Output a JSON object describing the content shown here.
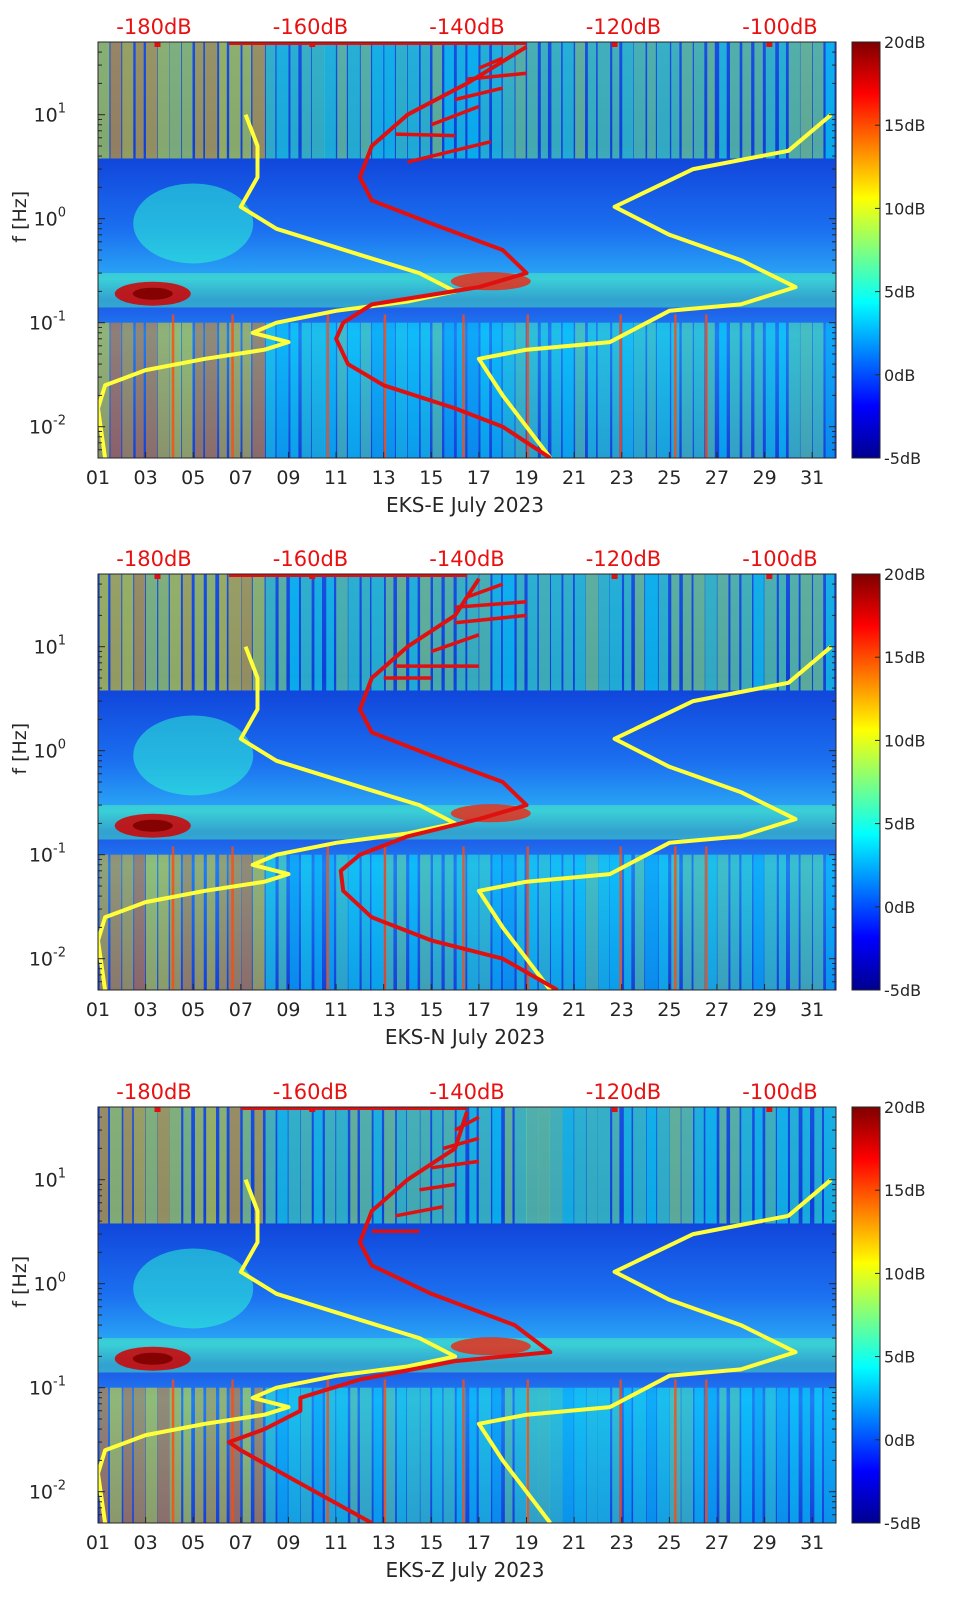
{
  "chart_data": [
    {
      "type": "heatmap",
      "xlabel": "EKS-E July 2023",
      "ylabel": "f [Hz]",
      "x_ticks": [
        "01",
        "03",
        "05",
        "07",
        "09",
        "11",
        "13",
        "15",
        "17",
        "19",
        "21",
        "23",
        "25",
        "27",
        "29",
        "31"
      ],
      "xlim": [
        1,
        32
      ],
      "ylim": [
        0.005,
        50
      ],
      "y_scale": "log",
      "y_ticks": [
        {
          "value": 0.01,
          "base": "10",
          "exp": "-2"
        },
        {
          "value": 0.1,
          "base": "10",
          "exp": "-1"
        },
        {
          "value": 1,
          "base": "10",
          "exp": "0"
        },
        {
          "value": 10,
          "base": "10",
          "exp": "1"
        }
      ],
      "top_scale_labels": [
        "-180dB",
        "-160dB",
        "-140dB",
        "-120dB",
        "-100dB"
      ],
      "colorbar": {
        "colormap": "jet",
        "range": [
          -5,
          20
        ],
        "labels": [
          "20dB",
          "15dB",
          "10dB",
          "5dB",
          "0dB",
          "-5dB"
        ]
      },
      "yellow_curve": [
        [
          1.3,
          0.005
        ],
        [
          1.0,
          0.015
        ],
        [
          1.3,
          0.025
        ],
        [
          3.0,
          0.035
        ],
        [
          5.5,
          0.045
        ],
        [
          8.0,
          0.055
        ],
        [
          9.0,
          0.065
        ],
        [
          7.5,
          0.08
        ],
        [
          8.5,
          0.1
        ],
        [
          11,
          0.13
        ],
        [
          14,
          0.16
        ],
        [
          16,
          0.2
        ],
        [
          14.5,
          0.3
        ],
        [
          12,
          0.45
        ],
        [
          8.5,
          0.8
        ],
        [
          7.0,
          1.3
        ],
        [
          7.7,
          2.5
        ],
        [
          7.7,
          5
        ],
        [
          7.2,
          10
        ]
      ],
      "yellow_curve_right": [
        [
          20,
          0.005
        ],
        [
          19,
          0.01
        ],
        [
          18,
          0.02
        ],
        [
          17,
          0.045
        ],
        [
          19,
          0.055
        ],
        [
          22.5,
          0.065
        ],
        [
          25,
          0.13
        ],
        [
          28,
          0.15
        ],
        [
          30.3,
          0.22
        ],
        [
          28,
          0.4
        ],
        [
          25,
          0.7
        ],
        [
          22.7,
          1.3
        ],
        [
          26,
          3.0
        ],
        [
          30,
          4.5
        ],
        [
          31.8,
          10
        ]
      ],
      "red_curve": [
        [
          20,
          0.005
        ],
        [
          18,
          0.01
        ],
        [
          16,
          0.015
        ],
        [
          13,
          0.025
        ],
        [
          11.5,
          0.04
        ],
        [
          11,
          0.07
        ],
        [
          11.3,
          0.1
        ],
        [
          12.5,
          0.15
        ],
        [
          17,
          0.22
        ],
        [
          19,
          0.3
        ],
        [
          18,
          0.5
        ],
        [
          15,
          0.9
        ],
        [
          12.5,
          1.5
        ],
        [
          12,
          2.5
        ],
        [
          12.5,
          5
        ],
        [
          14,
          10
        ],
        [
          16.5,
          20
        ],
        [
          19,
          45
        ]
      ],
      "red_fingers": [
        [
          [
            14,
            3.5
          ],
          [
            17.5,
            5.5
          ]
        ],
        [
          [
            13.5,
            6.5
          ],
          [
            16,
            6.3
          ]
        ],
        [
          [
            15,
            8
          ],
          [
            17,
            12
          ]
        ],
        [
          [
            16,
            14
          ],
          [
            18,
            18
          ]
        ],
        [
          [
            16.5,
            22
          ],
          [
            19,
            25
          ]
        ],
        [
          [
            17,
            28
          ],
          [
            18,
            35
          ]
        ]
      ],
      "red_top_line": [
        6.5,
        19.0
      ],
      "red_top_dots": [
        3.5,
        10,
        22.7,
        29.2
      ]
    },
    {
      "type": "heatmap",
      "xlabel": "EKS-N July 2023",
      "ylabel": "f [Hz]",
      "x_ticks": [
        "01",
        "03",
        "05",
        "07",
        "09",
        "11",
        "13",
        "15",
        "17",
        "19",
        "21",
        "23",
        "25",
        "27",
        "29",
        "31"
      ],
      "xlim": [
        1,
        32
      ],
      "ylim": [
        0.005,
        50
      ],
      "y_scale": "log",
      "y_ticks": [
        {
          "value": 0.01,
          "base": "10",
          "exp": "-2"
        },
        {
          "value": 0.1,
          "base": "10",
          "exp": "-1"
        },
        {
          "value": 1,
          "base": "10",
          "exp": "0"
        },
        {
          "value": 10,
          "base": "10",
          "exp": "1"
        }
      ],
      "top_scale_labels": [
        "-180dB",
        "-160dB",
        "-140dB",
        "-120dB",
        "-100dB"
      ],
      "colorbar": {
        "colormap": "jet",
        "range": [
          -5,
          20
        ],
        "labels": [
          "20dB",
          "15dB",
          "10dB",
          "5dB",
          "0dB",
          "-5dB"
        ]
      },
      "yellow_curve": [
        [
          1.3,
          0.005
        ],
        [
          1.0,
          0.015
        ],
        [
          1.3,
          0.025
        ],
        [
          3.0,
          0.035
        ],
        [
          5.5,
          0.045
        ],
        [
          8.0,
          0.055
        ],
        [
          9.0,
          0.065
        ],
        [
          7.5,
          0.08
        ],
        [
          8.5,
          0.1
        ],
        [
          11,
          0.13
        ],
        [
          14,
          0.16
        ],
        [
          16,
          0.2
        ],
        [
          14.5,
          0.3
        ],
        [
          12,
          0.45
        ],
        [
          8.5,
          0.8
        ],
        [
          7.0,
          1.3
        ],
        [
          7.7,
          2.5
        ],
        [
          7.7,
          5
        ],
        [
          7.2,
          10
        ]
      ],
      "yellow_curve_right": [
        [
          20,
          0.005
        ],
        [
          19,
          0.01
        ],
        [
          18,
          0.02
        ],
        [
          17,
          0.045
        ],
        [
          19,
          0.055
        ],
        [
          22.5,
          0.065
        ],
        [
          25,
          0.13
        ],
        [
          28,
          0.15
        ],
        [
          30.3,
          0.22
        ],
        [
          28,
          0.4
        ],
        [
          25,
          0.7
        ],
        [
          22.7,
          1.3
        ],
        [
          26,
          3.0
        ],
        [
          30,
          4.5
        ],
        [
          31.8,
          10
        ]
      ],
      "red_curve": [
        [
          20.3,
          0.005
        ],
        [
          18,
          0.01
        ],
        [
          15,
          0.015
        ],
        [
          12.5,
          0.025
        ],
        [
          11.3,
          0.045
        ],
        [
          11.2,
          0.07
        ],
        [
          12,
          0.1
        ],
        [
          14,
          0.15
        ],
        [
          17,
          0.22
        ],
        [
          19,
          0.3
        ],
        [
          18,
          0.5
        ],
        [
          15,
          0.9
        ],
        [
          12.5,
          1.5
        ],
        [
          12,
          2.5
        ],
        [
          12.5,
          5
        ],
        [
          14,
          10
        ],
        [
          16,
          20
        ],
        [
          17,
          45
        ]
      ],
      "red_fingers": [
        [
          [
            13,
            5
          ],
          [
            15,
            5
          ]
        ],
        [
          [
            13.5,
            6.5
          ],
          [
            17,
            6.5
          ]
        ],
        [
          [
            15,
            9
          ],
          [
            17,
            13
          ]
        ],
        [
          [
            16,
            17
          ],
          [
            19,
            20
          ]
        ],
        [
          [
            16,
            24
          ],
          [
            19,
            27
          ]
        ],
        [
          [
            16.5,
            30
          ],
          [
            18,
            40
          ]
        ]
      ],
      "red_top_line": [
        6.5,
        16.5
      ],
      "red_top_dots": [
        3.5,
        10,
        22.7,
        29.2
      ]
    },
    {
      "type": "heatmap",
      "xlabel": "EKS-Z July 2023",
      "ylabel": "f [Hz]",
      "x_ticks": [
        "01",
        "03",
        "05",
        "07",
        "09",
        "11",
        "13",
        "15",
        "17",
        "19",
        "21",
        "23",
        "25",
        "27",
        "29",
        "31"
      ],
      "xlim": [
        1,
        32
      ],
      "ylim": [
        0.005,
        50
      ],
      "y_scale": "log",
      "y_ticks": [
        {
          "value": 0.01,
          "base": "10",
          "exp": "-2"
        },
        {
          "value": 0.1,
          "base": "10",
          "exp": "-1"
        },
        {
          "value": 1,
          "base": "10",
          "exp": "0"
        },
        {
          "value": 10,
          "base": "10",
          "exp": "1"
        }
      ],
      "top_scale_labels": [
        "-180dB",
        "-160dB",
        "-140dB",
        "-120dB",
        "-100dB"
      ],
      "colorbar": {
        "colormap": "jet",
        "range": [
          -5,
          20
        ],
        "labels": [
          "20dB",
          "15dB",
          "10dB",
          "5dB",
          "0dB",
          "-5dB"
        ]
      },
      "yellow_curve": [
        [
          1.3,
          0.005
        ],
        [
          1.0,
          0.015
        ],
        [
          1.3,
          0.025
        ],
        [
          3.0,
          0.035
        ],
        [
          5.5,
          0.045
        ],
        [
          8.0,
          0.055
        ],
        [
          9.0,
          0.065
        ],
        [
          7.5,
          0.08
        ],
        [
          8.5,
          0.1
        ],
        [
          11,
          0.13
        ],
        [
          14,
          0.16
        ],
        [
          16,
          0.2
        ],
        [
          14.5,
          0.3
        ],
        [
          12,
          0.45
        ],
        [
          8.5,
          0.8
        ],
        [
          7.0,
          1.3
        ],
        [
          7.7,
          2.5
        ],
        [
          7.7,
          5
        ],
        [
          7.2,
          10
        ]
      ],
      "yellow_curve_right": [
        [
          20,
          0.005
        ],
        [
          19,
          0.01
        ],
        [
          18,
          0.02
        ],
        [
          17,
          0.045
        ],
        [
          19,
          0.055
        ],
        [
          22.5,
          0.065
        ],
        [
          25,
          0.13
        ],
        [
          28,
          0.15
        ],
        [
          30.3,
          0.22
        ],
        [
          28,
          0.4
        ],
        [
          25,
          0.7
        ],
        [
          22.7,
          1.3
        ],
        [
          26,
          3.0
        ],
        [
          30,
          4.5
        ],
        [
          31.8,
          10
        ]
      ],
      "red_curve": [
        [
          12.5,
          0.005
        ],
        [
          9.5,
          0.012
        ],
        [
          7,
          0.025
        ],
        [
          6.5,
          0.03
        ],
        [
          8,
          0.04
        ],
        [
          9.5,
          0.06
        ],
        [
          9.5,
          0.08
        ],
        [
          12,
          0.12
        ],
        [
          16,
          0.18
        ],
        [
          20,
          0.22
        ],
        [
          18.5,
          0.4
        ],
        [
          15,
          0.8
        ],
        [
          12.5,
          1.5
        ],
        [
          12,
          2.5
        ],
        [
          12.5,
          5
        ],
        [
          14,
          10
        ],
        [
          16,
          20
        ],
        [
          16.5,
          45
        ]
      ],
      "red_fingers": [
        [
          [
            12.5,
            3.2
          ],
          [
            14.5,
            3.2
          ]
        ],
        [
          [
            13.5,
            4.5
          ],
          [
            15.5,
            5.5
          ]
        ],
        [
          [
            14.5,
            8
          ],
          [
            16,
            9
          ]
        ],
        [
          [
            15,
            13
          ],
          [
            17,
            15
          ]
        ],
        [
          [
            15.5,
            20
          ],
          [
            17,
            25
          ]
        ],
        [
          [
            16,
            30
          ],
          [
            17,
            40
          ]
        ]
      ],
      "red_top_line": [
        7.0,
        16.5
      ],
      "red_top_dots": [
        3.5,
        10,
        22.7,
        29.2
      ]
    }
  ]
}
